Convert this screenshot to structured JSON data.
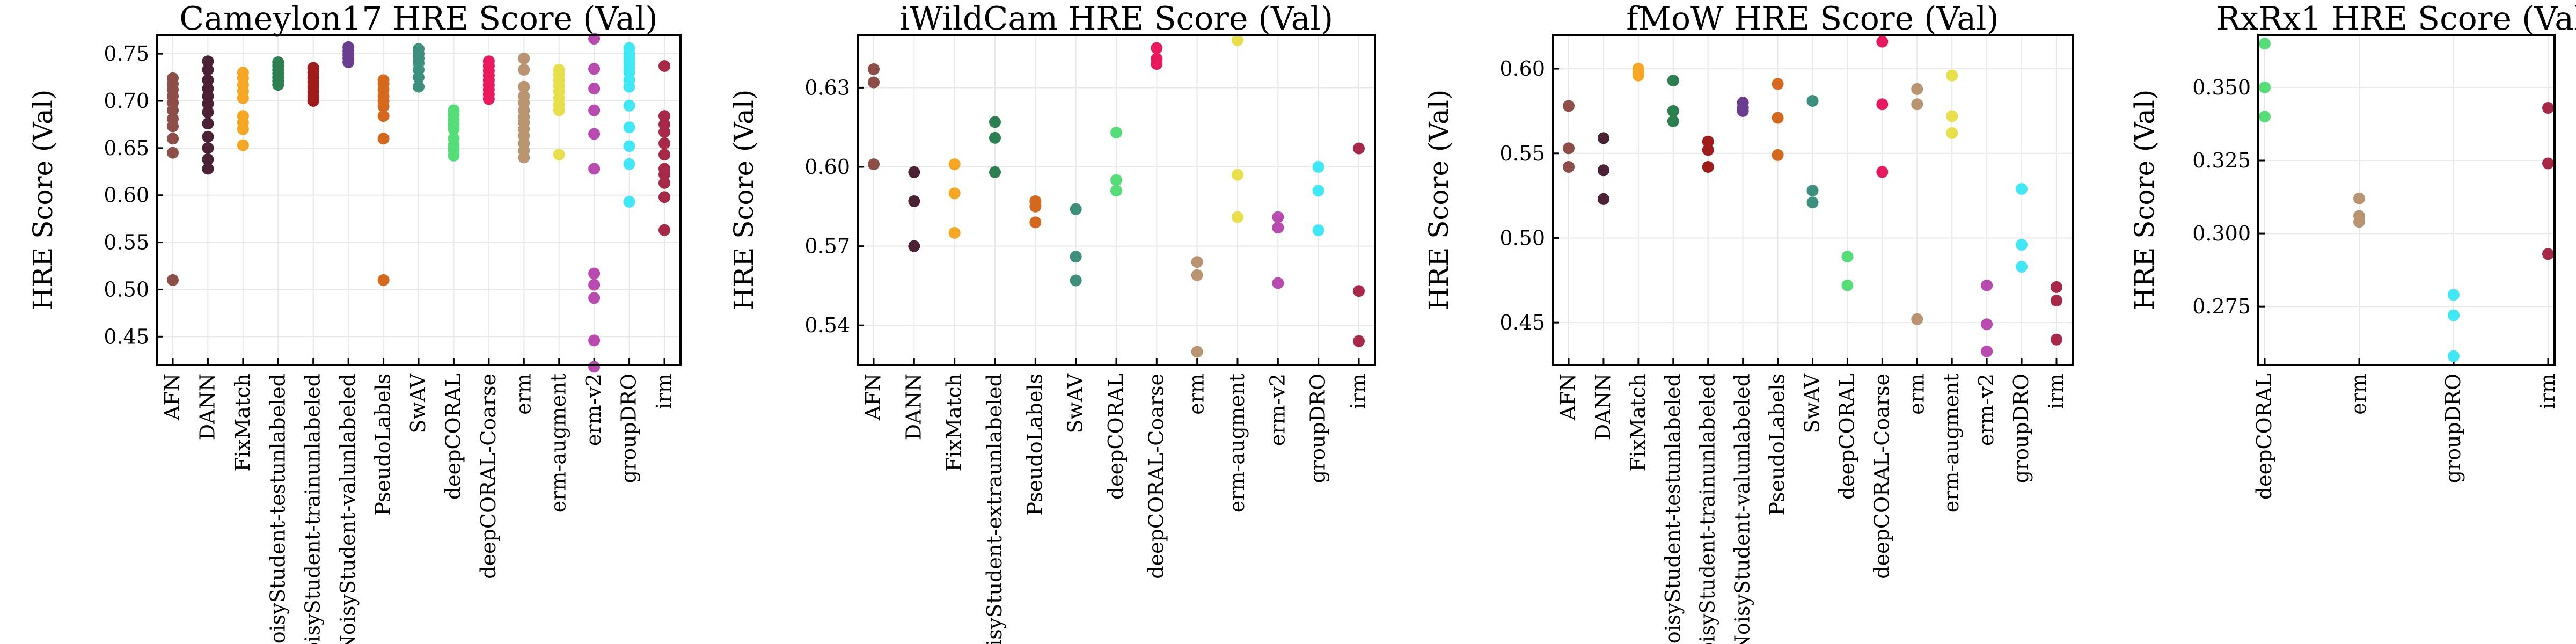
{
  "chart_data": [
    {
      "type": "scatter",
      "title": "Cameylon17 HRE Score (Val)",
      "ylabel": "HRE Score (Val)",
      "ylim": [
        0.42,
        0.77
      ],
      "yticks": [
        0.45,
        0.5,
        0.55,
        0.6,
        0.65,
        0.7,
        0.75
      ],
      "ytick_labels": [
        "0.45",
        "0.50",
        "0.55",
        "0.60",
        "0.65",
        "0.70",
        "0.75"
      ],
      "grid": true,
      "categories": [
        "AFN",
        "DANN",
        "FixMatch",
        "NoisyStudent-testunlabeled",
        "NoisyStudent-trainunlabeled",
        "NoisyStudent-valunlabeled",
        "PseudoLabels",
        "SwAV",
        "deepCORAL",
        "deepCORAL-Coarse",
        "erm",
        "erm-augment",
        "erm-v2",
        "groupDRO",
        "irm"
      ],
      "colors": [
        "#8c4e46",
        "#4a2135",
        "#f5a623",
        "#2c7f4e",
        "#a01c1c",
        "#6a3d8e",
        "#d4681c",
        "#3d8f7e",
        "#55dd77",
        "#e8195c",
        "#b89470",
        "#e8e04a",
        "#b94ab0",
        "#40e8f5",
        "#a82848"
      ],
      "series": [
        {
          "name": "AFN",
          "values": [
            0.724,
            0.718,
            0.712,
            0.705,
            0.698,
            0.69,
            0.681,
            0.673,
            0.66,
            0.645,
            0.51
          ]
        },
        {
          "name": "DANN",
          "values": [
            0.742,
            0.733,
            0.722,
            0.713,
            0.705,
            0.697,
            0.688,
            0.676,
            0.662,
            0.65,
            0.638,
            0.628
          ]
        },
        {
          "name": "FixMatch",
          "values": [
            0.73,
            0.724,
            0.717,
            0.71,
            0.703,
            0.684,
            0.677,
            0.67,
            0.653
          ]
        },
        {
          "name": "NoisyStudent-testunlabeled",
          "values": [
            0.741,
            0.737,
            0.733,
            0.729,
            0.725,
            0.721,
            0.717
          ]
        },
        {
          "name": "NoisyStudent-trainunlabeled",
          "values": [
            0.735,
            0.73,
            0.725,
            0.72,
            0.715,
            0.71,
            0.705,
            0.7
          ]
        },
        {
          "name": "NoisyStudent-valunlabeled",
          "values": [
            0.757,
            0.753,
            0.749,
            0.745,
            0.741
          ]
        },
        {
          "name": "PseudoLabels",
          "values": [
            0.722,
            0.718,
            0.712,
            0.705,
            0.7,
            0.694,
            0.684,
            0.66,
            0.51
          ]
        },
        {
          "name": "SwAV",
          "values": [
            0.755,
            0.75,
            0.745,
            0.74,
            0.733,
            0.725,
            0.715
          ]
        },
        {
          "name": "deepCORAL",
          "values": [
            0.69,
            0.685,
            0.68,
            0.675,
            0.67,
            0.66,
            0.653,
            0.648,
            0.642
          ]
        },
        {
          "name": "deepCORAL-Coarse",
          "values": [
            0.742,
            0.737,
            0.732,
            0.727,
            0.722,
            0.717,
            0.712,
            0.707,
            0.702
          ]
        },
        {
          "name": "erm",
          "values": [
            0.745,
            0.733,
            0.715,
            0.705,
            0.698,
            0.69,
            0.683,
            0.677,
            0.67,
            0.663,
            0.655,
            0.647,
            0.64
          ]
        },
        {
          "name": "erm-augment",
          "values": [
            0.733,
            0.728,
            0.722,
            0.716,
            0.71,
            0.703,
            0.696,
            0.69,
            0.643
          ]
        },
        {
          "name": "erm-v2",
          "values": [
            0.766,
            0.734,
            0.713,
            0.69,
            0.665,
            0.628,
            0.517,
            0.505,
            0.491,
            0.446,
            0.418
          ]
        },
        {
          "name": "groupDRO",
          "values": [
            0.756,
            0.75,
            0.745,
            0.74,
            0.735,
            0.73,
            0.722,
            0.715,
            0.695,
            0.672,
            0.652,
            0.633,
            0.593
          ]
        },
        {
          "name": "irm",
          "values": [
            0.737,
            0.684,
            0.675,
            0.667,
            0.655,
            0.643,
            0.628,
            0.622,
            0.613,
            0.598,
            0.563
          ]
        }
      ]
    },
    {
      "type": "scatter",
      "title": "iWildCam HRE Score (Val)",
      "ylabel": "HRE Score (Val)",
      "ylim": [
        0.525,
        0.65
      ],
      "yticks": [
        0.54,
        0.57,
        0.6,
        0.63
      ],
      "ytick_labels": [
        "0.54",
        "0.57",
        "0.60",
        "0.63"
      ],
      "grid": true,
      "categories": [
        "AFN",
        "DANN",
        "FixMatch",
        "NoisyStudent-extraunlabeled",
        "PseudoLabels",
        "SwAV",
        "deepCORAL",
        "deepCORAL-Coarse",
        "erm",
        "erm-augment",
        "erm-v2",
        "groupDRO",
        "irm"
      ],
      "colors": [
        "#8c4e46",
        "#4a2135",
        "#f5a623",
        "#2c7f4e",
        "#d4681c",
        "#3d8f7e",
        "#55dd77",
        "#e8195c",
        "#b89470",
        "#e8e04a",
        "#b94ab0",
        "#40e8f5",
        "#a82848"
      ],
      "series": [
        {
          "name": "AFN",
          "values": [
            0.637,
            0.632,
            0.601
          ]
        },
        {
          "name": "DANN",
          "values": [
            0.598,
            0.587,
            0.57
          ]
        },
        {
          "name": "FixMatch",
          "values": [
            0.601,
            0.59,
            0.575
          ]
        },
        {
          "name": "NoisyStudent-extraunlabeled",
          "values": [
            0.617,
            0.611,
            0.598
          ]
        },
        {
          "name": "PseudoLabels",
          "values": [
            0.587,
            0.585,
            0.579
          ]
        },
        {
          "name": "SwAV",
          "values": [
            0.584,
            0.566,
            0.557
          ]
        },
        {
          "name": "deepCORAL",
          "values": [
            0.613,
            0.595,
            0.591
          ]
        },
        {
          "name": "deepCORAL-Coarse",
          "values": [
            0.645,
            0.641,
            0.639
          ]
        },
        {
          "name": "erm",
          "values": [
            0.564,
            0.559,
            0.53
          ]
        },
        {
          "name": "erm-augment",
          "values": [
            0.648,
            0.597,
            0.581
          ]
        },
        {
          "name": "erm-v2",
          "values": [
            0.581,
            0.577,
            0.556
          ]
        },
        {
          "name": "groupDRO",
          "values": [
            0.6,
            0.591,
            0.576
          ]
        },
        {
          "name": "irm",
          "values": [
            0.607,
            0.553,
            0.534
          ]
        }
      ]
    },
    {
      "type": "scatter",
      "title": "fMoW HRE Score (Val)",
      "ylabel": "HRE Score (Val)",
      "ylim": [
        0.425,
        0.62
      ],
      "yticks": [
        0.45,
        0.5,
        0.55,
        0.6
      ],
      "ytick_labels": [
        "0.45",
        "0.50",
        "0.55",
        "0.60"
      ],
      "grid": true,
      "categories": [
        "AFN",
        "DANN",
        "FixMatch",
        "NoisyStudent-testunlabeled",
        "NoisyStudent-trainunlabeled",
        "NoisyStudent-valunlabeled",
        "PseudoLabels",
        "SwAV",
        "deepCORAL",
        "deepCORAL-Coarse",
        "erm",
        "erm-augment",
        "erm-v2",
        "groupDRO",
        "irm"
      ],
      "colors": [
        "#8c4e46",
        "#4a2135",
        "#f5a623",
        "#2c7f4e",
        "#a01c1c",
        "#6a3d8e",
        "#d4681c",
        "#3d8f7e",
        "#55dd77",
        "#e8195c",
        "#b89470",
        "#e8e04a",
        "#b94ab0",
        "#40e8f5",
        "#a82848"
      ],
      "series": [
        {
          "name": "AFN",
          "values": [
            0.578,
            0.553,
            0.542
          ]
        },
        {
          "name": "DANN",
          "values": [
            0.559,
            0.54,
            0.523
          ]
        },
        {
          "name": "FixMatch",
          "values": [
            0.6,
            0.598,
            0.596
          ]
        },
        {
          "name": "NoisyStudent-testunlabeled",
          "values": [
            0.593,
            0.575,
            0.569
          ]
        },
        {
          "name": "NoisyStudent-trainunlabeled",
          "values": [
            0.557,
            0.552,
            0.542
          ]
        },
        {
          "name": "NoisyStudent-valunlabeled",
          "values": [
            0.58,
            0.577,
            0.575
          ]
        },
        {
          "name": "PseudoLabels",
          "values": [
            0.591,
            0.571,
            0.549
          ]
        },
        {
          "name": "SwAV",
          "values": [
            0.581,
            0.528,
            0.521
          ]
        },
        {
          "name": "deepCORAL",
          "values": [
            0.489,
            0.472
          ]
        },
        {
          "name": "deepCORAL-Coarse",
          "values": [
            0.616,
            0.579,
            0.539
          ]
        },
        {
          "name": "erm",
          "values": [
            0.588,
            0.579,
            0.452
          ]
        },
        {
          "name": "erm-augment",
          "values": [
            0.596,
            0.572,
            0.562
          ]
        },
        {
          "name": "erm-v2",
          "values": [
            0.472,
            0.449,
            0.433
          ]
        },
        {
          "name": "groupDRO",
          "values": [
            0.529,
            0.496,
            0.483
          ]
        },
        {
          "name": "irm",
          "values": [
            0.471,
            0.463,
            0.44
          ]
        }
      ]
    },
    {
      "type": "scatter",
      "title": "RxRx1 HRE Score (Val)",
      "ylabel": "HRE Score (Val)",
      "ylim": [
        0.255,
        0.368
      ],
      "yticks": [
        0.275,
        0.3,
        0.325,
        0.35
      ],
      "ytick_labels": [
        "0.275",
        "0.300",
        "0.325",
        "0.350"
      ],
      "grid": true,
      "categories": [
        "deepCORAL",
        "erm",
        "groupDRO",
        "irm"
      ],
      "colors": [
        "#55dd77",
        "#b89470",
        "#40e8f5",
        "#a82848"
      ],
      "series": [
        {
          "name": "deepCORAL",
          "values": [
            0.365,
            0.35,
            0.34
          ]
        },
        {
          "name": "erm",
          "values": [
            0.312,
            0.306,
            0.304
          ]
        },
        {
          "name": "groupDRO",
          "values": [
            0.279,
            0.272,
            0.258
          ]
        },
        {
          "name": "irm",
          "values": [
            0.343,
            0.324,
            0.293
          ]
        }
      ]
    }
  ]
}
